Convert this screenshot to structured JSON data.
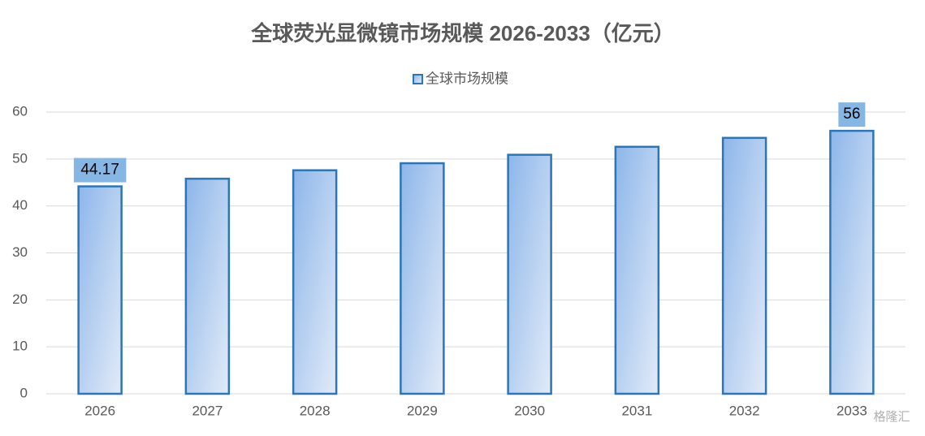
{
  "chart_data": {
    "type": "bar",
    "title": "全球荧光显微镜市场规模 2026-2033（亿元）",
    "categories": [
      "2026",
      "2027",
      "2028",
      "2029",
      "2030",
      "2031",
      "2032",
      "2033"
    ],
    "series": [
      {
        "name": "全球市场规模",
        "color": "#2e75b6",
        "values": [
          44.17,
          45.8,
          47.6,
          49.1,
          50.9,
          52.6,
          54.5,
          56
        ],
        "value_labels": [
          "44.17",
          null,
          null,
          null,
          null,
          null,
          null,
          "56"
        ]
      }
    ],
    "ylim": [
      0,
      60
    ],
    "yticks": [
      0,
      10,
      20,
      30,
      40,
      50,
      60
    ],
    "grid": true,
    "legend": "top",
    "watermark": "格隆汇"
  }
}
